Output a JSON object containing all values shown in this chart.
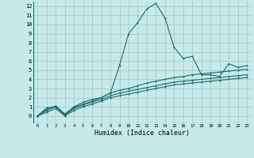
{
  "background_color": "#c6eaea",
  "grid_color": "#a8cccc",
  "line_color": "#1a6b6b",
  "xlabel": "Humidex (Indice chaleur)",
  "xlim": [
    -0.5,
    23.5
  ],
  "ylim": [
    -0.8,
    12.5
  ],
  "xticks": [
    0,
    1,
    2,
    3,
    4,
    5,
    6,
    7,
    8,
    9,
    10,
    11,
    12,
    13,
    14,
    15,
    16,
    17,
    18,
    19,
    20,
    21,
    22,
    23
  ],
  "yticks": [
    0,
    1,
    2,
    3,
    4,
    5,
    6,
    7,
    8,
    9,
    10,
    11,
    12
  ],
  "series": [
    [
      0.0,
      0.9,
      1.0,
      0.2,
      1.0,
      1.5,
      1.8,
      2.0,
      2.5,
      5.5,
      9.0,
      10.2,
      11.7,
      12.3,
      10.7,
      7.5,
      6.3,
      6.5,
      4.5,
      4.5,
      4.3,
      5.7,
      5.3,
      5.5
    ],
    [
      0.0,
      0.7,
      1.1,
      0.2,
      0.9,
      1.3,
      1.6,
      2.0,
      2.5,
      2.8,
      3.0,
      3.3,
      3.6,
      3.8,
      4.0,
      4.2,
      4.3,
      4.5,
      4.6,
      4.7,
      4.8,
      4.9,
      5.0,
      5.1
    ],
    [
      0.0,
      0.6,
      1.0,
      0.1,
      0.8,
      1.2,
      1.5,
      1.8,
      2.2,
      2.5,
      2.7,
      2.9,
      3.1,
      3.3,
      3.5,
      3.7,
      3.8,
      3.9,
      4.0,
      4.1,
      4.2,
      4.3,
      4.4,
      4.5
    ],
    [
      0.0,
      0.4,
      0.8,
      0.0,
      0.6,
      1.0,
      1.3,
      1.6,
      2.0,
      2.2,
      2.4,
      2.6,
      2.8,
      3.0,
      3.2,
      3.4,
      3.5,
      3.6,
      3.7,
      3.8,
      3.9,
      4.0,
      4.1,
      4.2
    ]
  ],
  "markersize": 1.8,
  "linewidth": 0.8,
  "tick_fontsize_x": 4.0,
  "tick_fontsize_y": 5.0,
  "xlabel_fontsize": 6.0
}
